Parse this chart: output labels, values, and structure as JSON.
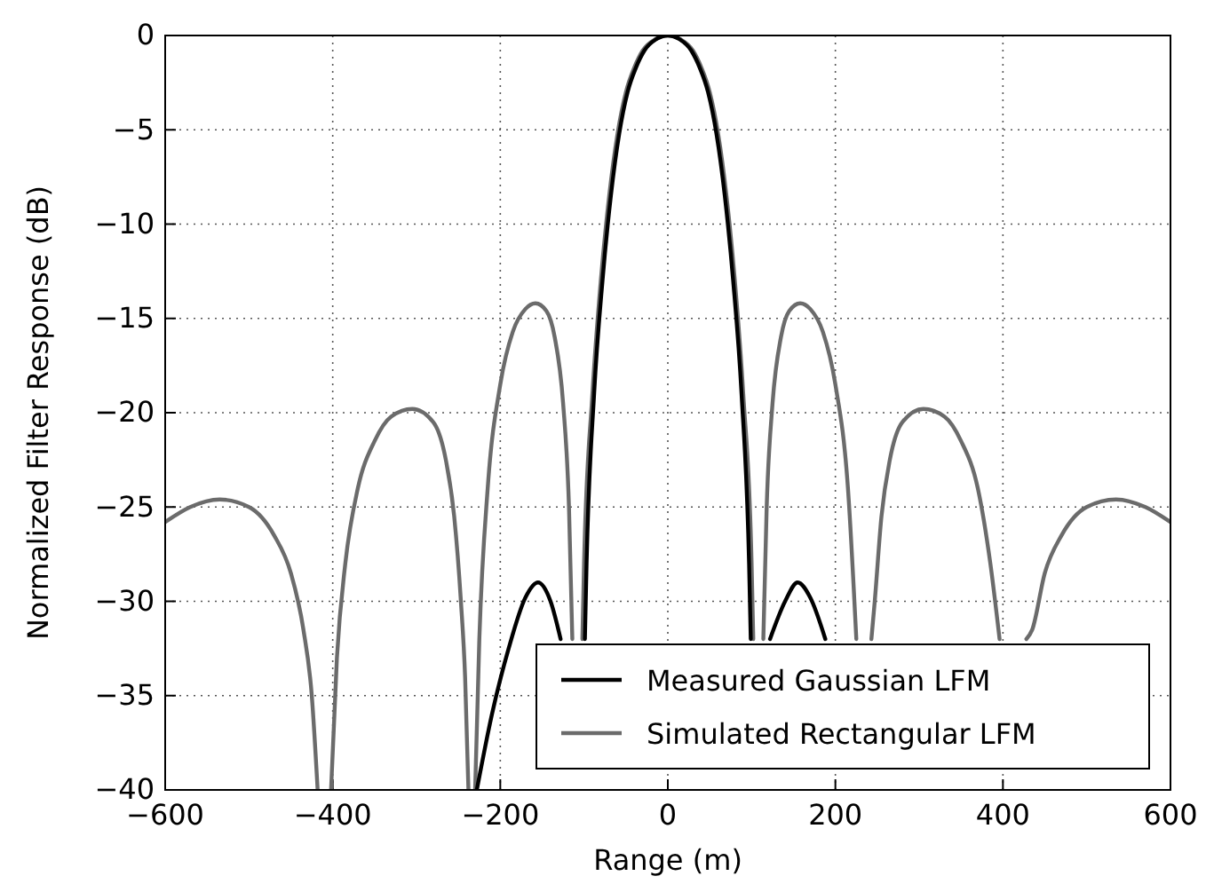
{
  "chart_data": {
    "type": "line",
    "xlabel": "Range (m)",
    "ylabel": "Normalized Filter Response (dB)",
    "xlim": [
      -600,
      600
    ],
    "ylim": [
      -40,
      0
    ],
    "xticks": [
      {
        "value": -600,
        "label": "−600"
      },
      {
        "value": -400,
        "label": "−400"
      },
      {
        "value": -200,
        "label": "−200"
      },
      0,
      200,
      400,
      600
    ],
    "yticks": [
      {
        "value": -40,
        "label": "−40"
      },
      {
        "value": -35,
        "label": "−35"
      },
      {
        "value": -30,
        "label": "−30"
      },
      {
        "value": -25,
        "label": "−25"
      },
      {
        "value": -20,
        "label": "−20"
      },
      {
        "value": -15,
        "label": "−15"
      },
      {
        "value": -10,
        "label": "−10"
      },
      {
        "value": -5,
        "label": "−5"
      },
      0
    ],
    "grid": true,
    "legend": "bottom right",
    "line_style": "solid",
    "marker": "none",
    "series": [
      {
        "name": "Measured Gaussian LFM",
        "color": "#000000",
        "x": [
          -228,
          -210,
          -190,
          -170,
          -155,
          -140,
          -128,
          -110,
          -99,
          -97,
          -88,
          -78,
          -68,
          -58,
          -48,
          -38,
          -28,
          -14,
          0,
          14,
          28,
          38,
          48,
          58,
          68,
          78,
          88,
          97,
          99,
          110,
          122,
          140,
          155,
          170,
          188
        ],
        "values": [
          -40,
          -36,
          -32.5,
          -29.8,
          -29,
          -30,
          -32,
          null,
          -32,
          -28,
          -19,
          -13,
          -8.5,
          -5.2,
          -3,
          -1.7,
          -0.8,
          -0.2,
          0,
          -0.2,
          -0.8,
          -1.7,
          -3,
          -5.2,
          -8.5,
          -13,
          -19,
          -28,
          -32,
          null,
          -32,
          -30,
          -29,
          -29.8,
          -32
        ]
      },
      {
        "name": "Simulated Rectangular LFM",
        "color": "#6b6b6b",
        "x": [
          -600,
          -570,
          -535,
          -500,
          -470,
          -450,
          -435,
          -425,
          -418,
          -410,
          -402,
          -395,
          -385,
          -370,
          -350,
          -330,
          -305,
          -280,
          -265,
          -255,
          -247,
          -242,
          -238,
          -234,
          -230,
          -225,
          -215,
          -200,
          -185,
          -170,
          -158,
          -145,
          -135,
          -125,
          -118,
          -114,
          -108,
          -102,
          -100,
          -90,
          -80,
          -70,
          -60,
          -50,
          -40,
          -30,
          -15,
          0,
          15,
          30,
          40,
          50,
          60,
          70,
          80,
          90,
          100,
          102,
          108,
          114,
          118,
          125,
          135,
          145,
          158,
          170,
          185,
          200,
          215,
          225,
          234,
          243,
          247,
          255,
          265,
          280,
          305,
          330,
          350,
          370,
          385,
          396,
          412,
          428,
          435,
          450,
          470,
          500,
          535,
          570,
          600
        ],
        "values": [
          -25.8,
          -25,
          -24.6,
          -25,
          -26.5,
          -28.5,
          -31.5,
          -35,
          -40,
          null,
          -40,
          -33,
          -28,
          -24,
          -21.5,
          -20.2,
          -19.8,
          -20.5,
          -22.5,
          -25.5,
          -30,
          -34,
          -40,
          null,
          -40,
          -32,
          -24,
          -18.5,
          -15.7,
          -14.5,
          -14.2,
          -14.6,
          -16,
          -19.5,
          -25,
          -32,
          null,
          -32,
          -28,
          -19,
          -13,
          -8.5,
          -5.2,
          -3,
          -1.7,
          -0.8,
          -0.2,
          0,
          -0.2,
          -0.8,
          -1.7,
          -3,
          -5.2,
          -8.5,
          -13,
          -19,
          -28,
          -32,
          null,
          -32,
          -25,
          -19.5,
          -16,
          -14.6,
          -14.2,
          -14.5,
          -15.7,
          -18.5,
          -24,
          -32,
          null,
          -32,
          -30,
          -25.5,
          -22.5,
          -20.5,
          -19.8,
          -20.2,
          -21.5,
          -24,
          -28,
          -32,
          null,
          -32,
          -31.5,
          -28.5,
          -26.5,
          -25,
          -24.6,
          -25,
          -25.8
        ]
      }
    ]
  }
}
